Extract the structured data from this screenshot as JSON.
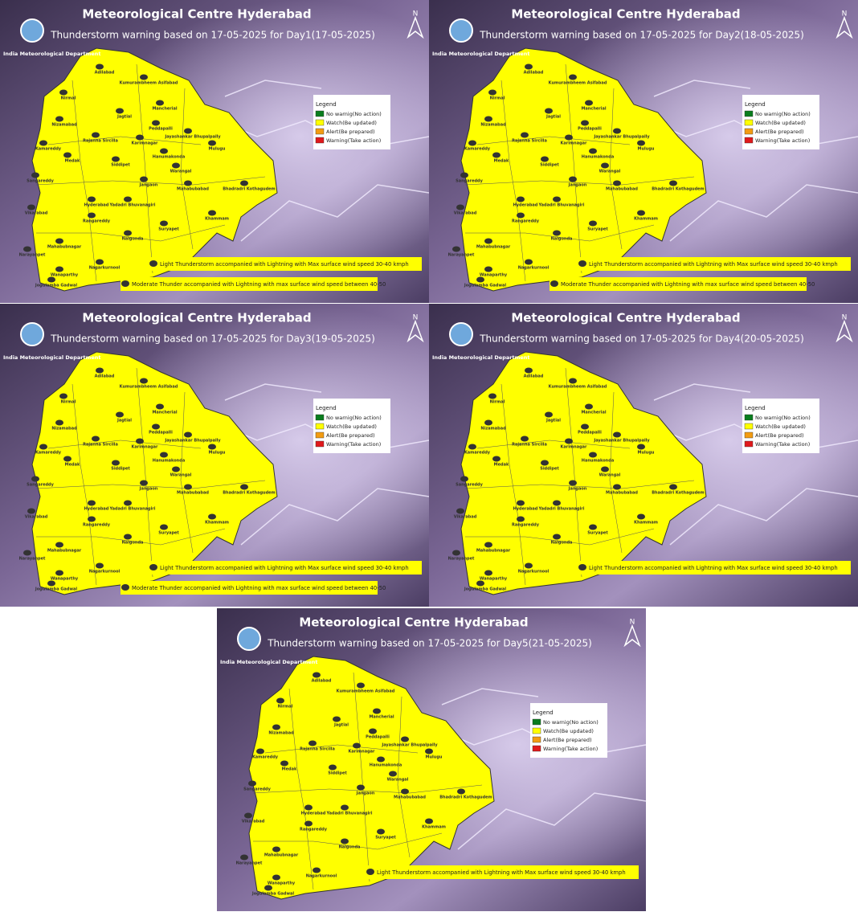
{
  "org": "India Meteorological Department",
  "north": "N",
  "legend": {
    "title": "Legend",
    "items": [
      {
        "label": "No warnig(No action)",
        "color": "#0a7d1e"
      },
      {
        "label": "Watch(Be updated)",
        "color": "#ffff00"
      },
      {
        "label": "Alert(Be prepared)",
        "color": "#f39c12"
      },
      {
        "label": "Warning(Take action)",
        "color": "#e0191c"
      }
    ]
  },
  "districts": [
    "Adilabad",
    "Kumurambheem Asifabad",
    "Nirmal",
    "Mancherial",
    "Jagtial",
    "Nizamabad",
    "Peddapalli",
    "Jayashankar Bhupalpally",
    "Rajanna Sircilla",
    "Karimnagar",
    "Kamareddy",
    "Mulugu",
    "Medak",
    "Siddipet",
    "Hanumakonda",
    "Warangal",
    "Sangareddy",
    "Jangaon",
    "Mahabubabad",
    "Bhadradri Kothagudem",
    "Hyderabad",
    "Yadadri Bhuvanagiri",
    "Vikarabad",
    "Rangareddy",
    "Khammam",
    "Suryapet",
    "Nalgonda",
    "Narayanpet",
    "Mahabubnagar",
    "Wanaparthy",
    "Nagarkurnool",
    "Jogulamba Gadwal"
  ],
  "panels": [
    {
      "title": "Meteorological Centre Hyderabad",
      "subtitle": "Thunderstorm warning based on 17-05-2025 for Day1(17-05-2025)",
      "notes": [
        "Light Thunderstorm accompanied with Lightning with Max surface wind speed 30-40 kmph",
        "Moderate Thunder accompanied with Lightning with max surface wind speed between 40-50"
      ]
    },
    {
      "title": "Meteorological Centre Hyderabad",
      "subtitle": "Thunderstorm warning based on 17-05-2025 for Day2(18-05-2025)",
      "notes": [
        "Light Thunderstorm accompanied with Lightning with Max surface wind speed 30-40 kmph",
        "Moderate Thunder accompanied with Lightning with max surface wind speed between 40-50"
      ]
    },
    {
      "title": "Meteorological Centre Hyderabad",
      "subtitle": "Thunderstorm warning based on 17-05-2025 for Day3(19-05-2025)",
      "notes": [
        "Light Thunderstorm accompanied with Lightning with Max surface wind speed 30-40 kmph",
        "Moderate Thunder accompanied with Lightning with max surface wind speed between 40-50"
      ]
    },
    {
      "title": "Meteorological Centre Hyderabad",
      "subtitle": "Thunderstorm warning based on 17-05-2025 for Day4(20-05-2025)",
      "notes": [
        "Light Thunderstorm accompanied with Lightning with Max surface wind speed 30-40 kmph"
      ]
    },
    {
      "title": "Meteorological Centre Hyderabad",
      "subtitle": "Thunderstorm warning based on 17-05-2025 for Day5(21-05-2025)",
      "notes": [
        "Light Thunderstorm accompanied with Lightning with Max surface wind speed 30-40 kmph"
      ]
    }
  ]
}
